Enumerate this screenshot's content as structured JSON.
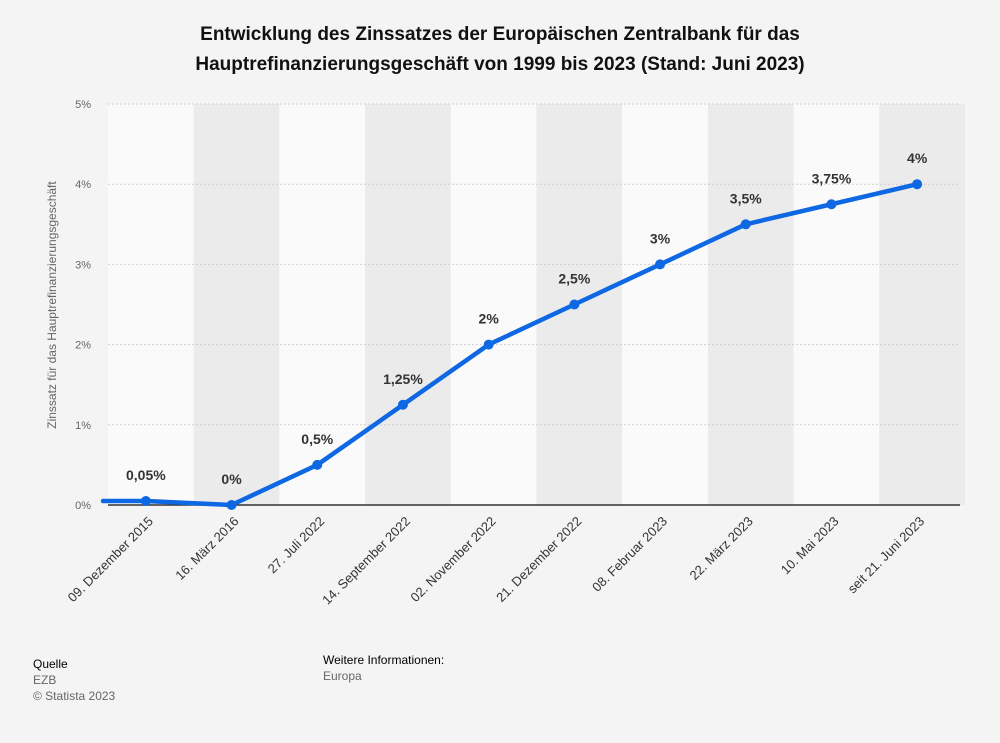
{
  "title_line1": "Entwicklung des Zinssatzes der Europäischen Zentralbank für das",
  "title_line2": "Hauptrefinanzierungsgeschäft von 1999 bis 2023 (Stand: Juni 2023)",
  "footer": {
    "source_heading": "Quelle",
    "source": "EZB",
    "copyright": "© Statista 2023",
    "info_heading": "Weitere Informationen:",
    "info": "Europa"
  },
  "colors": {
    "line": "#0e67e3",
    "band": "#ebebeb",
    "grid": "#cfcfcf"
  },
  "chart_data": {
    "type": "line",
    "title": "Entwicklung des Zinssatzes der Europäischen Zentralbank für das Hauptrefinanzierungsgeschäft von 1999 bis 2023 (Stand: Juni 2023)",
    "xlabel": "",
    "ylabel": "Zinssatz für das Hauptrefinanzierungsgeschäft",
    "y_unit": "%",
    "ylim": [
      0,
      5
    ],
    "yticks": [
      "0%",
      "1%",
      "2%",
      "3%",
      "4%",
      "5%"
    ],
    "grid": true,
    "legend": "none",
    "categories": [
      "09. Dezember 2015",
      "16. März 2016",
      "27. Juli 2022",
      "14. September 2022",
      "02. November 2022",
      "21. Dezember 2022",
      "08. Februar 2023",
      "22. März 2023",
      "10. Mai 2023",
      "seit 21. Juni 2023"
    ],
    "series": [
      {
        "values": [
          0.05,
          0,
          0.5,
          1.25,
          2,
          2.5,
          3,
          3.5,
          3.75,
          4
        ],
        "labels": [
          "0,05%",
          "0%",
          "0,5%",
          "1,25%",
          "2%",
          "2,5%",
          "3%",
          "3,5%",
          "3,75%",
          "4%"
        ]
      }
    ]
  }
}
